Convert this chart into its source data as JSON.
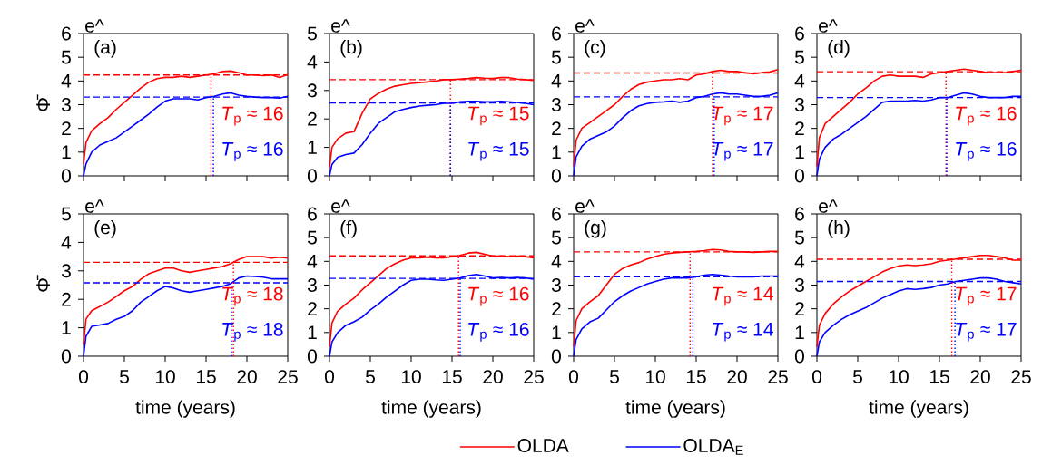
{
  "chart_data": [
    {
      "type": "line",
      "ylabel": "Φ̄",
      "legend": "bottom",
      "tick_labels": "y",
      "xlim": [
        0,
        25
      ],
      "ylim": [
        0,
        6
      ],
      "xticks": [
        0,
        5,
        10,
        15,
        20,
        25
      ],
      "yticks": [
        0,
        1,
        2,
        3,
        4,
        5,
        6
      ],
      "annotations": [
        "(a)",
        "e^",
        "*T*$_{p}$ ≈ 16",
        "*T*$_{p}$ ≈ 16"
      ],
      "x": [
        0,
        0.3,
        1,
        2,
        3,
        4,
        5,
        6,
        7,
        8,
        9,
        10,
        11,
        12,
        13,
        14,
        15,
        16,
        17,
        18,
        19,
        20,
        21,
        22,
        23,
        24,
        25
      ],
      "series": [
        {
          "name": "OLDA",
          "color": "#ff0000",
          "values": [
            0.5,
            1.4,
            1.9,
            2.2,
            2.45,
            2.8,
            3.1,
            3.4,
            3.7,
            3.95,
            4.1,
            4.15,
            4.15,
            4.2,
            4.15,
            4.2,
            4.25,
            4.3,
            4.4,
            4.42,
            4.35,
            4.25,
            4.25,
            4.22,
            4.25,
            4.15,
            4.27
          ]
        },
        {
          "name": "OLDA$_{E}$",
          "color": "#0000ff",
          "values": [
            0,
            0.5,
            1.0,
            1.3,
            1.45,
            1.6,
            1.85,
            2.1,
            2.35,
            2.6,
            2.9,
            3.15,
            3.25,
            3.25,
            3.25,
            3.2,
            3.3,
            3.35,
            3.45,
            3.5,
            3.4,
            3.35,
            3.32,
            3.3,
            3.3,
            3.28,
            3.35
          ]
        }
      ],
      "ref_lines": [
        {
          "axis": "y",
          "value": 4.25,
          "color": "#ff0000",
          "line_style": "dashed"
        },
        {
          "axis": "y",
          "value": 3.32,
          "color": "#0000ff",
          "line_style": "dashed"
        },
        {
          "axis": "x",
          "value": 15.6,
          "color": "#ff0000",
          "line_style": "dotted"
        },
        {
          "axis": "x",
          "value": 15.9,
          "color": "#0000ff",
          "line_style": "dotted"
        }
      ]
    },
    {
      "type": "line",
      "tick_labels": "y",
      "xlim": [
        0,
        25
      ],
      "ylim": [
        0,
        5
      ],
      "xticks": [
        0,
        5,
        10,
        15,
        20,
        25
      ],
      "yticks": [
        0,
        1,
        2,
        3,
        4,
        5
      ],
      "annotations": [
        "(b)",
        "e^",
        "*T*$_{p}$ ≈ 15",
        "*T*$_{p}$ ≈ 15"
      ],
      "x": [
        0,
        0.3,
        1,
        2,
        3,
        4,
        5,
        6,
        7,
        8,
        9,
        10,
        11,
        12,
        13,
        14,
        15,
        16,
        17,
        18,
        19,
        20,
        21,
        22,
        23,
        24,
        25
      ],
      "series": [
        {
          "color": "#ff0000",
          "values": [
            0.3,
            1.0,
            1.3,
            1.5,
            1.55,
            2.2,
            2.7,
            2.9,
            3.05,
            3.15,
            3.2,
            3.25,
            3.27,
            3.3,
            3.33,
            3.38,
            3.38,
            3.4,
            3.42,
            3.45,
            3.43,
            3.42,
            3.45,
            3.45,
            3.4,
            3.38,
            3.35
          ]
        },
        {
          "color": "#0000ff",
          "values": [
            0,
            0.4,
            0.65,
            0.75,
            0.8,
            1.1,
            1.5,
            1.85,
            2.05,
            2.25,
            2.33,
            2.4,
            2.45,
            2.48,
            2.5,
            2.55,
            2.55,
            2.6,
            2.62,
            2.62,
            2.6,
            2.6,
            2.62,
            2.6,
            2.58,
            2.55,
            2.5
          ]
        }
      ],
      "ref_lines": [
        {
          "axis": "y",
          "value": 3.38,
          "color": "#ff0000",
          "line_style": "dashed"
        },
        {
          "axis": "y",
          "value": 2.56,
          "color": "#0000ff",
          "line_style": "dashed"
        },
        {
          "axis": "x",
          "value": 14.8,
          "color": "#ff0000",
          "line_style": "dotted"
        },
        {
          "axis": "x",
          "value": 14.8,
          "color": "#0000ff",
          "line_style": "dotted"
        }
      ]
    },
    {
      "type": "line",
      "tick_labels": "y",
      "xlim": [
        0,
        25
      ],
      "ylim": [
        0,
        6
      ],
      "xticks": [
        0,
        5,
        10,
        15,
        20,
        25
      ],
      "yticks": [
        0,
        1,
        2,
        3,
        4,
        5,
        6
      ],
      "annotations": [
        "(c)",
        "e^",
        "*T*$_{p}$ ≈ 17",
        "*T*$_{p}$ ≈ 17"
      ],
      "x": [
        0,
        0.3,
        1,
        2,
        3,
        4,
        5,
        6,
        7,
        8,
        9,
        10,
        11,
        12,
        13,
        14,
        15,
        16,
        17,
        18,
        19,
        20,
        21,
        22,
        23,
        24,
        25
      ],
      "series": [
        {
          "color": "#ff0000",
          "values": [
            0.4,
            1.5,
            2.0,
            2.25,
            2.5,
            2.75,
            3.0,
            3.35,
            3.65,
            3.85,
            3.95,
            4.0,
            4.05,
            4.05,
            4.1,
            4.05,
            4.25,
            4.3,
            4.4,
            4.45,
            4.4,
            4.4,
            4.35,
            4.3,
            4.35,
            4.38,
            4.48
          ]
        },
        {
          "color": "#0000ff",
          "values": [
            0,
            0.8,
            1.25,
            1.55,
            1.7,
            1.85,
            2.1,
            2.45,
            2.75,
            2.95,
            3.05,
            3.1,
            3.12,
            3.15,
            3.1,
            3.15,
            3.3,
            3.35,
            3.45,
            3.5,
            3.45,
            3.45,
            3.4,
            3.35,
            3.35,
            3.4,
            3.5
          ]
        }
      ],
      "ref_lines": [
        {
          "axis": "y",
          "value": 4.34,
          "color": "#ff0000",
          "line_style": "dashed"
        },
        {
          "axis": "y",
          "value": 3.33,
          "color": "#0000ff",
          "line_style": "dashed"
        },
        {
          "axis": "x",
          "value": 17.0,
          "color": "#ff0000",
          "line_style": "dotted"
        },
        {
          "axis": "x",
          "value": 17.2,
          "color": "#0000ff",
          "line_style": "dotted"
        }
      ]
    },
    {
      "type": "line",
      "tick_labels": "y",
      "xlim": [
        0,
        25
      ],
      "ylim": [
        0,
        6
      ],
      "xticks": [
        0,
        5,
        10,
        15,
        20,
        25
      ],
      "yticks": [
        0,
        1,
        2,
        3,
        4,
        5,
        6
      ],
      "annotations": [
        "(d)",
        "e^",
        "*T*$_{p}$ ≈ 16",
        "*T*$_{p}$ ≈ 16"
      ],
      "x": [
        0,
        0.3,
        1,
        2,
        3,
        4,
        5,
        6,
        7,
        8,
        9,
        10,
        11,
        12,
        13,
        14,
        15,
        16,
        17,
        18,
        19,
        20,
        21,
        22,
        23,
        24,
        25
      ],
      "series": [
        {
          "color": "#ff0000",
          "values": [
            0.4,
            1.6,
            2.2,
            2.5,
            2.8,
            3.1,
            3.45,
            3.7,
            4.0,
            4.2,
            4.25,
            4.2,
            4.2,
            4.2,
            4.15,
            4.3,
            4.35,
            4.4,
            4.45,
            4.5,
            4.45,
            4.4,
            4.35,
            4.35,
            4.35,
            4.4,
            4.45
          ]
        },
        {
          "color": "#0000ff",
          "values": [
            0,
            0.7,
            1.2,
            1.55,
            1.75,
            2.0,
            2.25,
            2.5,
            2.8,
            3.1,
            3.15,
            3.15,
            3.15,
            3.18,
            3.15,
            3.2,
            3.3,
            3.3,
            3.4,
            3.5,
            3.45,
            3.35,
            3.3,
            3.3,
            3.3,
            3.35,
            3.35
          ]
        }
      ],
      "ref_lines": [
        {
          "axis": "y",
          "value": 4.39,
          "color": "#ff0000",
          "line_style": "dashed"
        },
        {
          "axis": "y",
          "value": 3.3,
          "color": "#0000ff",
          "line_style": "dashed"
        },
        {
          "axis": "x",
          "value": 15.8,
          "color": "#ff0000",
          "line_style": "dotted"
        },
        {
          "axis": "x",
          "value": 15.9,
          "color": "#0000ff",
          "line_style": "dotted"
        }
      ]
    },
    {
      "type": "line",
      "ylabel": "Φ̄",
      "xlabel": "time (years)",
      "xlim": [
        0,
        25
      ],
      "ylim": [
        0,
        5
      ],
      "xticks": [
        0,
        5,
        10,
        15,
        20,
        25
      ],
      "yticks": [
        0,
        1,
        2,
        3,
        4,
        5
      ],
      "annotations": [
        "(e)",
        "e^",
        "*T*$_{p}$ ≈ 18",
        "*T*$_{p}$ ≈ 18"
      ],
      "x": [
        0,
        0.3,
        1,
        2,
        3,
        4,
        5,
        6,
        7,
        8,
        9,
        10,
        11,
        12,
        13,
        14,
        15,
        16,
        17,
        18,
        19,
        20,
        21,
        22,
        23,
        24,
        25
      ],
      "series": [
        {
          "color": "#ff0000",
          "values": [
            0.4,
            1.3,
            1.6,
            1.75,
            1.9,
            2.1,
            2.3,
            2.45,
            2.7,
            2.9,
            3.0,
            3.1,
            3.1,
            3.0,
            2.95,
            3.0,
            3.05,
            3.1,
            3.15,
            3.25,
            3.4,
            3.5,
            3.5,
            3.5,
            3.45,
            3.48,
            3.45
          ]
        },
        {
          "color": "#0000ff",
          "values": [
            0,
            0.7,
            1.05,
            1.1,
            1.15,
            1.3,
            1.4,
            1.6,
            1.9,
            2.1,
            2.3,
            2.45,
            2.4,
            2.3,
            2.25,
            2.3,
            2.35,
            2.4,
            2.45,
            2.55,
            2.75,
            2.82,
            2.8,
            2.78,
            2.72,
            2.72,
            2.72
          ]
        }
      ],
      "ref_lines": [
        {
          "axis": "y",
          "value": 3.3,
          "color": "#ff0000",
          "line_style": "dashed"
        },
        {
          "axis": "y",
          "value": 2.58,
          "color": "#0000ff",
          "line_style": "dashed"
        },
        {
          "axis": "x",
          "value": 18.35,
          "color": "#ff0000",
          "line_style": "dotted"
        },
        {
          "axis": "x",
          "value": 18.1,
          "color": "#0000ff",
          "line_style": "dotted"
        }
      ]
    },
    {
      "type": "line",
      "xlabel": "time (years)",
      "xlim": [
        0,
        25
      ],
      "ylim": [
        0,
        6
      ],
      "xticks": [
        0,
        5,
        10,
        15,
        20,
        25
      ],
      "yticks": [
        0,
        1,
        2,
        3,
        4,
        5,
        6
      ],
      "annotations": [
        "(f)",
        "e^",
        "*T*$_{p}$ ≈ 16",
        "*T*$_{p}$ ≈ 16"
      ],
      "x": [
        0,
        0.3,
        1,
        2,
        3,
        4,
        5,
        6,
        7,
        8,
        9,
        10,
        11,
        12,
        13,
        14,
        15,
        16,
        17,
        18,
        19,
        20,
        21,
        22,
        23,
        24,
        25
      ],
      "series": [
        {
          "color": "#ff0000",
          "values": [
            0.4,
            1.4,
            1.9,
            2.2,
            2.45,
            2.8,
            3.1,
            3.4,
            3.7,
            3.9,
            4.05,
            4.15,
            4.15,
            4.18,
            4.15,
            4.15,
            4.2,
            4.25,
            4.35,
            4.38,
            4.3,
            4.22,
            4.22,
            4.2,
            4.22,
            4.2,
            4.15
          ]
        },
        {
          "color": "#0000ff",
          "values": [
            0,
            0.6,
            1.0,
            1.3,
            1.45,
            1.65,
            1.95,
            2.2,
            2.5,
            2.75,
            3.0,
            3.2,
            3.25,
            3.25,
            3.22,
            3.2,
            3.25,
            3.3,
            3.4,
            3.45,
            3.38,
            3.3,
            3.32,
            3.3,
            3.32,
            3.3,
            3.25
          ]
        }
      ],
      "ref_lines": [
        {
          "axis": "y",
          "value": 4.23,
          "color": "#ff0000",
          "line_style": "dashed"
        },
        {
          "axis": "y",
          "value": 3.28,
          "color": "#0000ff",
          "line_style": "dashed"
        },
        {
          "axis": "x",
          "value": 15.8,
          "color": "#ff0000",
          "line_style": "dotted"
        },
        {
          "axis": "x",
          "value": 16.0,
          "color": "#0000ff",
          "line_style": "dotted"
        }
      ]
    },
    {
      "type": "line",
      "xlabel": "time (years)",
      "xlim": [
        0,
        25
      ],
      "ylim": [
        0,
        6
      ],
      "xticks": [
        0,
        5,
        10,
        15,
        20,
        25
      ],
      "yticks": [
        0,
        1,
        2,
        3,
        4,
        5,
        6
      ],
      "annotations": [
        "(g)",
        "e^",
        "*T*$_{p}$ ≈ 14",
        "*T*$_{p}$ ≈ 14"
      ],
      "x": [
        0,
        0.3,
        1,
        2,
        3,
        4,
        5,
        6,
        7,
        8,
        9,
        10,
        11,
        12,
        13,
        14,
        15,
        16,
        17,
        18,
        19,
        20,
        21,
        22,
        23,
        24,
        25
      ],
      "series": [
        {
          "color": "#ff0000",
          "values": [
            0.4,
            1.5,
            2.0,
            2.3,
            2.55,
            3.0,
            3.45,
            3.7,
            3.85,
            3.95,
            4.1,
            4.2,
            4.3,
            4.35,
            4.38,
            4.4,
            4.42,
            4.45,
            4.5,
            4.48,
            4.42,
            4.4,
            4.4,
            4.38,
            4.4,
            4.42,
            4.42
          ]
        },
        {
          "color": "#0000ff",
          "values": [
            0,
            0.7,
            1.15,
            1.45,
            1.6,
            1.95,
            2.3,
            2.55,
            2.75,
            2.9,
            3.05,
            3.15,
            3.25,
            3.3,
            3.3,
            3.3,
            3.35,
            3.42,
            3.45,
            3.42,
            3.38,
            3.35,
            3.35,
            3.35,
            3.38,
            3.38,
            3.38
          ]
        }
      ],
      "ref_lines": [
        {
          "axis": "y",
          "value": 4.4,
          "color": "#ff0000",
          "line_style": "dashed"
        },
        {
          "axis": "y",
          "value": 3.35,
          "color": "#0000ff",
          "line_style": "dashed"
        },
        {
          "axis": "x",
          "value": 14.25,
          "color": "#ff0000",
          "line_style": "dotted"
        },
        {
          "axis": "x",
          "value": 14.6,
          "color": "#0000ff",
          "line_style": "dotted"
        }
      ]
    },
    {
      "type": "line",
      "xlabel": "time (years)",
      "xlim": [
        0,
        25
      ],
      "ylim": [
        0,
        6
      ],
      "xticks": [
        0,
        5,
        10,
        15,
        20,
        25
      ],
      "yticks": [
        0,
        1,
        2,
        3,
        4,
        5,
        6
      ],
      "annotations": [
        "(h)",
        "e^",
        "*T*$_{p}$ ≈ 17",
        "*T*$_{p}$ ≈ 17"
      ],
      "x": [
        0,
        0.3,
        1,
        2,
        3,
        4,
        5,
        6,
        7,
        8,
        9,
        10,
        11,
        12,
        13,
        14,
        15,
        16,
        17,
        18,
        19,
        20,
        21,
        22,
        23,
        24,
        25
      ],
      "series": [
        {
          "color": "#ff0000",
          "values": [
            0.4,
            1.3,
            1.8,
            2.2,
            2.5,
            2.75,
            2.95,
            3.15,
            3.35,
            3.55,
            3.7,
            3.8,
            3.85,
            3.82,
            3.85,
            3.9,
            4.0,
            4.05,
            4.1,
            4.15,
            4.2,
            4.25,
            4.25,
            4.2,
            4.15,
            4.05,
            4.05
          ]
        },
        {
          "color": "#0000ff",
          "values": [
            0,
            0.6,
            1.0,
            1.3,
            1.55,
            1.75,
            1.9,
            2.05,
            2.25,
            2.45,
            2.6,
            2.75,
            2.85,
            2.82,
            2.85,
            2.9,
            3.0,
            3.05,
            3.15,
            3.2,
            3.25,
            3.3,
            3.3,
            3.25,
            3.15,
            3.1,
            3.05
          ]
        }
      ],
      "ref_lines": [
        {
          "axis": "y",
          "value": 4.09,
          "color": "#ff0000",
          "line_style": "dashed"
        },
        {
          "axis": "y",
          "value": 3.15,
          "color": "#0000ff",
          "line_style": "dashed"
        },
        {
          "axis": "x",
          "value": 16.5,
          "color": "#ff0000",
          "line_style": "dotted"
        },
        {
          "axis": "x",
          "value": 16.9,
          "color": "#0000ff",
          "line_style": "dotted"
        }
      ]
    }
  ]
}
